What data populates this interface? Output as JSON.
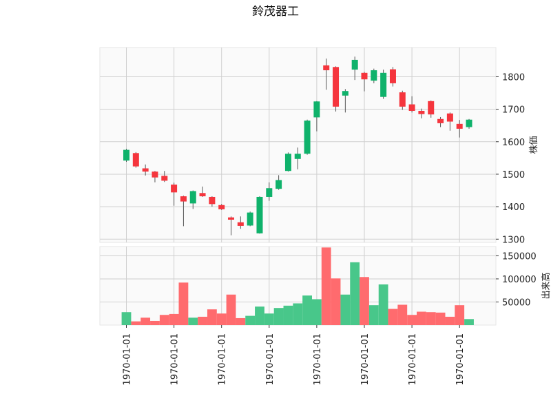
{
  "title": "鈴茂器工",
  "chart_data": {
    "type": "candlestick",
    "title": "鈴茂器工",
    "colors": {
      "up": "#0fb26b",
      "down": "#f5353d",
      "up_volume": "#48c78a",
      "down_volume": "#ff6b6e",
      "wick": "#555555"
    },
    "price_axis": {
      "label": "株価",
      "ticks": [
        1300,
        1400,
        1500,
        1600,
        1700,
        1800
      ],
      "range": [
        1290,
        1890
      ]
    },
    "volume_axis": {
      "label": "出来高",
      "ticks": [
        50000,
        100000,
        150000
      ],
      "range": [
        0,
        170000
      ]
    },
    "x_tick_labels": [
      "1970-01-01",
      "1970-01-01",
      "1970-01-01",
      "1970-01-01",
      "1970-01-01",
      "1970-01-01",
      "1970-01-01",
      "1970-01-01"
    ],
    "candles": [
      {
        "open": 1542,
        "high": 1578,
        "low": 1538,
        "close": 1575,
        "volume": 28000
      },
      {
        "open": 1565,
        "high": 1568,
        "low": 1520,
        "close": 1524,
        "volume": 8000
      },
      {
        "open": 1518,
        "high": 1530,
        "low": 1496,
        "close": 1508,
        "volume": 16000
      },
      {
        "open": 1508,
        "high": 1510,
        "low": 1475,
        "close": 1490,
        "volume": 9000
      },
      {
        "open": 1495,
        "high": 1510,
        "low": 1476,
        "close": 1480,
        "volume": 22000
      },
      {
        "open": 1468,
        "high": 1474,
        "low": 1403,
        "close": 1444,
        "volume": 24000
      },
      {
        "open": 1432,
        "high": 1434,
        "low": 1340,
        "close": 1416,
        "volume": 92000
      },
      {
        "open": 1410,
        "high": 1450,
        "low": 1393,
        "close": 1448,
        "volume": 16000
      },
      {
        "open": 1442,
        "high": 1462,
        "low": 1430,
        "close": 1432,
        "volume": 18000
      },
      {
        "open": 1430,
        "high": 1432,
        "low": 1400,
        "close": 1408,
        "volume": 34000
      },
      {
        "open": 1405,
        "high": 1408,
        "low": 1390,
        "close": 1392,
        "volume": 25000
      },
      {
        "open": 1367,
        "high": 1370,
        "low": 1312,
        "close": 1360,
        "volume": 66000
      },
      {
        "open": 1352,
        "high": 1370,
        "low": 1332,
        "close": 1341,
        "volume": 15000
      },
      {
        "open": 1342,
        "high": 1385,
        "low": 1340,
        "close": 1382,
        "volume": 20000
      },
      {
        "open": 1318,
        "high": 1432,
        "low": 1317,
        "close": 1430,
        "volume": 40000
      },
      {
        "open": 1430,
        "high": 1475,
        "low": 1418,
        "close": 1457,
        "volume": 25000
      },
      {
        "open": 1455,
        "high": 1497,
        "low": 1452,
        "close": 1482,
        "volume": 37000
      },
      {
        "open": 1510,
        "high": 1567,
        "low": 1508,
        "close": 1563,
        "volume": 42000
      },
      {
        "open": 1547,
        "high": 1582,
        "low": 1515,
        "close": 1563,
        "volume": 47000
      },
      {
        "open": 1563,
        "high": 1668,
        "low": 1560,
        "close": 1665,
        "volume": 64000
      },
      {
        "open": 1675,
        "high": 1725,
        "low": 1632,
        "close": 1724,
        "volume": 56000
      },
      {
        "open": 1835,
        "high": 1856,
        "low": 1760,
        "close": 1820,
        "volume": 168000
      },
      {
        "open": 1830,
        "high": 1832,
        "low": 1693,
        "close": 1708,
        "volume": 101000
      },
      {
        "open": 1742,
        "high": 1762,
        "low": 1690,
        "close": 1756,
        "volume": 66000
      },
      {
        "open": 1822,
        "high": 1862,
        "low": 1790,
        "close": 1852,
        "volume": 136000
      },
      {
        "open": 1812,
        "high": 1815,
        "low": 1755,
        "close": 1792,
        "volume": 104000
      },
      {
        "open": 1788,
        "high": 1825,
        "low": 1780,
        "close": 1820,
        "volume": 43000
      },
      {
        "open": 1738,
        "high": 1822,
        "low": 1732,
        "close": 1812,
        "volume": 88000
      },
      {
        "open": 1823,
        "high": 1830,
        "low": 1770,
        "close": 1780,
        "volume": 35000
      },
      {
        "open": 1752,
        "high": 1757,
        "low": 1698,
        "close": 1708,
        "volume": 44000
      },
      {
        "open": 1715,
        "high": 1740,
        "low": 1690,
        "close": 1695,
        "volume": 22000
      },
      {
        "open": 1695,
        "high": 1702,
        "low": 1672,
        "close": 1685,
        "volume": 29000
      },
      {
        "open": 1725,
        "high": 1727,
        "low": 1674,
        "close": 1684,
        "volume": 28000
      },
      {
        "open": 1670,
        "high": 1676,
        "low": 1645,
        "close": 1657,
        "volume": 27000
      },
      {
        "open": 1687,
        "high": 1690,
        "low": 1634,
        "close": 1662,
        "volume": 18000
      },
      {
        "open": 1655,
        "high": 1667,
        "low": 1613,
        "close": 1640,
        "volume": 43000
      },
      {
        "open": 1645,
        "high": 1670,
        "low": 1640,
        "close": 1668,
        "volume": 13000
      }
    ]
  }
}
